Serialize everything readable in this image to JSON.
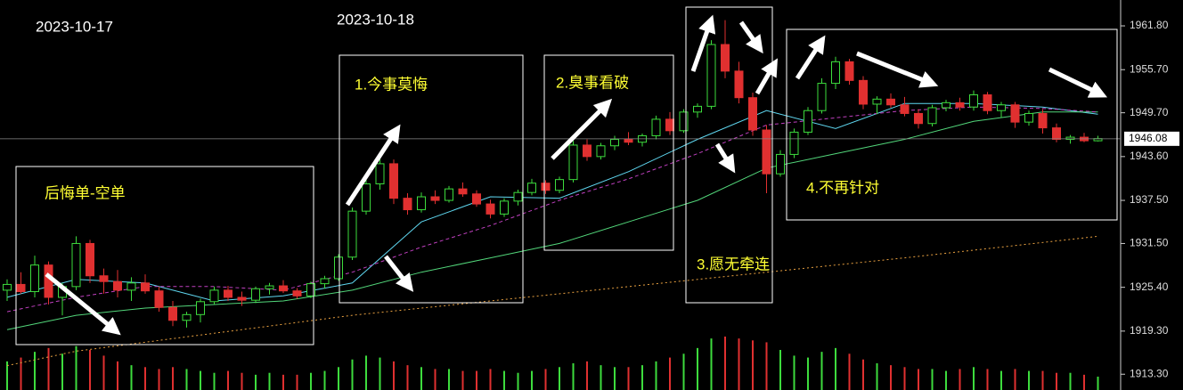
{
  "chart_data": {
    "type": "candlestick",
    "annotations": [
      "2023-10-17",
      "2023-10-18",
      "后悔单-空单",
      "1.今事莫悔",
      "2.臭事看破",
      "3.愿无牵连",
      "4.不再针对"
    ],
    "up_color": "#3ddc3d",
    "down_color": "#e03030",
    "open": [
      1925.0,
      1925.8,
      1924.8,
      1928.5,
      1924.0,
      1925.5,
      1931.5,
      1927.0,
      1926.2,
      1925.0,
      1926.0,
      1924.9,
      1922.6,
      1920.8,
      1921.6,
      1923.4,
      1925.0,
      1924.0,
      1923.6,
      1925.2,
      1925.6,
      1924.9,
      1924.2,
      1925.9,
      1926.6,
      1929.6,
      1936.0,
      1939.8,
      1942.6,
      1937.8,
      1936.2,
      1938.0,
      1937.5,
      1939.1,
      1938.4,
      1937.0,
      1935.6,
      1937.4,
      1938.6,
      1939.9,
      1938.9,
      1940.4,
      1945.2,
      1943.6,
      1945.1,
      1946.0,
      1945.6,
      1946.5,
      1948.8,
      1947.2,
      1949.8,
      1950.6,
      1959.2,
      1955.5,
      1951.8,
      1947.3,
      1941.2,
      1943.9,
      1947.0,
      1950.0,
      1953.8,
      1956.8,
      1954.2,
      1950.9,
      1951.6,
      1950.8,
      1949.6,
      1948.2,
      1950.4,
      1951.1,
      1950.5,
      1952.2,
      1950.0,
      1950.8,
      1948.4,
      1949.6,
      1947.6,
      1946.0,
      1946.3,
      1945.8
    ],
    "high": [
      1926.5,
      1927.5,
      1929.8,
      1929.0,
      1926.0,
      1932.5,
      1932.0,
      1928.0,
      1927.8,
      1926.8,
      1927.2,
      1925.5,
      1923.5,
      1922.0,
      1923.8,
      1925.5,
      1925.6,
      1924.8,
      1925.5,
      1926.0,
      1926.4,
      1925.3,
      1926.2,
      1927.0,
      1930.0,
      1936.5,
      1940.5,
      1943.5,
      1943.2,
      1938.5,
      1938.6,
      1938.9,
      1939.5,
      1940.0,
      1938.9,
      1937.6,
      1937.8,
      1939.0,
      1940.5,
      1940.3,
      1940.8,
      1945.8,
      1946.0,
      1945.5,
      1946.5,
      1947.0,
      1946.8,
      1949.3,
      1949.8,
      1950.2,
      1951.0,
      1959.8,
      1962.6,
      1956.8,
      1952.5,
      1948.0,
      1944.5,
      1947.5,
      1950.5,
      1954.5,
      1957.5,
      1957.2,
      1954.8,
      1952.0,
      1952.4,
      1951.9,
      1950.2,
      1950.8,
      1951.5,
      1951.8,
      1952.8,
      1952.6,
      1951.2,
      1951.2,
      1950.0,
      1950.2,
      1948.2,
      1946.6,
      1946.9,
      1946.5
    ],
    "low": [
      1923.5,
      1924.5,
      1924.0,
      1923.0,
      1921.5,
      1925.0,
      1926.0,
      1924.5,
      1924.0,
      1923.5,
      1924.5,
      1922.0,
      1920.0,
      1919.8,
      1920.5,
      1923.0,
      1923.5,
      1922.8,
      1923.2,
      1924.4,
      1924.6,
      1923.8,
      1923.9,
      1925.2,
      1926.3,
      1929.2,
      1935.5,
      1939.0,
      1937.0,
      1935.5,
      1935.8,
      1937.0,
      1937.2,
      1938.0,
      1936.6,
      1935.0,
      1935.2,
      1936.8,
      1938.2,
      1938.4,
      1938.5,
      1940.0,
      1943.0,
      1943.2,
      1944.5,
      1945.2,
      1945.0,
      1946.0,
      1946.6,
      1946.9,
      1949.0,
      1950.2,
      1954.5,
      1951.0,
      1946.5,
      1938.5,
      1940.8,
      1943.4,
      1946.6,
      1949.6,
      1953.0,
      1953.6,
      1950.2,
      1949.5,
      1950.4,
      1949.2,
      1947.5,
      1947.8,
      1949.9,
      1950.0,
      1950.0,
      1949.5,
      1949.0,
      1947.6,
      1947.9,
      1946.8,
      1945.6,
      1945.4,
      1945.6,
      1945.7
    ],
    "close": [
      1925.8,
      1924.8,
      1928.5,
      1924.0,
      1925.5,
      1931.5,
      1927.0,
      1926.2,
      1925.0,
      1926.0,
      1924.9,
      1922.6,
      1920.8,
      1921.6,
      1923.4,
      1925.0,
      1924.0,
      1923.6,
      1925.2,
      1925.6,
      1924.9,
      1924.2,
      1925.9,
      1926.6,
      1929.6,
      1936.0,
      1939.8,
      1942.6,
      1937.8,
      1936.2,
      1938.0,
      1937.5,
      1939.1,
      1938.4,
      1937.0,
      1935.6,
      1937.4,
      1938.6,
      1939.9,
      1938.9,
      1940.4,
      1945.2,
      1943.6,
      1945.1,
      1946.0,
      1945.6,
      1946.5,
      1948.8,
      1947.2,
      1949.8,
      1950.6,
      1959.2,
      1955.5,
      1951.8,
      1947.3,
      1941.2,
      1943.9,
      1947.0,
      1950.0,
      1953.8,
      1956.8,
      1954.2,
      1950.9,
      1951.6,
      1950.8,
      1949.6,
      1948.2,
      1950.4,
      1951.1,
      1950.5,
      1952.2,
      1950.0,
      1950.8,
      1948.4,
      1949.6,
      1947.6,
      1946.0,
      1946.3,
      1945.8,
      1946.1
    ],
    "volume": [
      30,
      34,
      40,
      44,
      38,
      46,
      42,
      36,
      30,
      26,
      24,
      22,
      24,
      22,
      20,
      18,
      20,
      18,
      16,
      18,
      16,
      16,
      18,
      20,
      24,
      32,
      36,
      34,
      30,
      26,
      24,
      22,
      22,
      20,
      20,
      22,
      20,
      18,
      20,
      22,
      24,
      28,
      30,
      26,
      24,
      24,
      26,
      30,
      34,
      38,
      44,
      54,
      56,
      54,
      52,
      50,
      42,
      36,
      34,
      40,
      44,
      38,
      32,
      28,
      26,
      24,
      22,
      22,
      20,
      22,
      24,
      22,
      20,
      22,
      20,
      20,
      18,
      18,
      16,
      14
    ],
    "lines": [
      {
        "color": "#5fd7f0",
        "dash": "none",
        "x": [
          0,
          5,
          10,
          15,
          20,
          25,
          30,
          35,
          40,
          45,
          50,
          55,
          60,
          65,
          70,
          75,
          79
        ],
        "values": [
          1924.0,
          1926.5,
          1926.0,
          1923.5,
          1924.2,
          1926.0,
          1934.5,
          1938.0,
          1937.8,
          1941.5,
          1946.0,
          1950.0,
          1947.5,
          1951.0,
          1951.0,
          1950.5,
          1949.5
        ]
      },
      {
        "color": "#52d67a",
        "dash": "none",
        "x": [
          0,
          5,
          10,
          15,
          20,
          25,
          30,
          35,
          40,
          45,
          50,
          55,
          60,
          65,
          70,
          75,
          79
        ],
        "values": [
          1919.5,
          1921.5,
          1922.5,
          1923.0,
          1923.5,
          1925.0,
          1927.5,
          1929.5,
          1931.5,
          1934.5,
          1937.5,
          1942.0,
          1944.0,
          1946.0,
          1948.5,
          1949.8,
          1949.8
        ]
      },
      {
        "color": "#c040c0",
        "dash": "4 3",
        "x": [
          0,
          5,
          10,
          15,
          20,
          25,
          30,
          35,
          40,
          45,
          50,
          55,
          60,
          65,
          70,
          75,
          79
        ],
        "values": [
          1922.0,
          1924.0,
          1925.5,
          1925.5,
          1925.0,
          1927.5,
          1931.0,
          1934.0,
          1937.5,
          1940.5,
          1944.0,
          1948.0,
          1949.0,
          1950.0,
          1950.5,
          1950.3,
          1949.8
        ]
      },
      {
        "color": "#e8a040",
        "dash": "2 3",
        "x": [
          0,
          5,
          25,
          50,
          65,
          79
        ],
        "values": [
          1914.5,
          1916.5,
          1921.5,
          1926.5,
          1929.5,
          1932.5
        ]
      }
    ],
    "last_price": 1946.08,
    "ylim": [
      1911.1,
      1965.4
    ],
    "yticks": [
      {
        "value": 1961.8,
        "label": "1961.80"
      },
      {
        "value": 1955.7,
        "label": "1955.70"
      },
      {
        "value": 1949.7,
        "label": "1949.70"
      },
      {
        "value": 1943.6,
        "label": "1943.60"
      },
      {
        "value": 1937.5,
        "label": "1937.50"
      },
      {
        "value": 1931.5,
        "label": "1931.50"
      },
      {
        "value": 1925.4,
        "label": "1925.40"
      },
      {
        "value": 1919.3,
        "label": "1919.30"
      },
      {
        "value": 1913.3,
        "label": "1913.30"
      }
    ]
  }
}
